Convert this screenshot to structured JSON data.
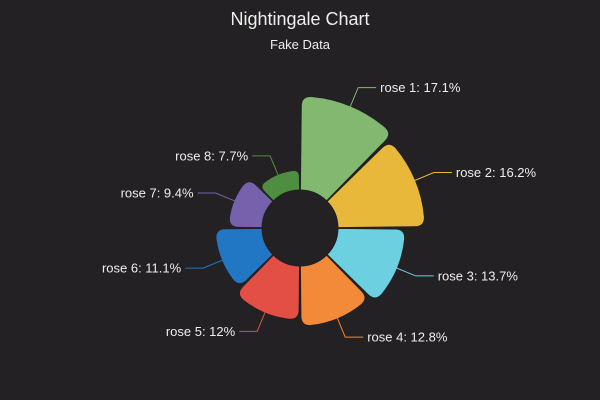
{
  "background": "#232123",
  "chart_data": {
    "type": "pie",
    "variant": "nightingale-rose",
    "title": "Nightingale Chart",
    "subtitle": "Fake Data",
    "series": [
      {
        "name": "rose 1",
        "value": 17.1,
        "label": "rose 1: 17.1%",
        "color": "#82b86f"
      },
      {
        "name": "rose 2",
        "value": 16.2,
        "label": "rose 2: 16.2%",
        "color": "#e8b83a"
      },
      {
        "name": "rose 3",
        "value": 13.7,
        "label": "rose 3: 13.7%",
        "color": "#6dd0e0"
      },
      {
        "name": "rose 4",
        "value": 12.8,
        "label": "rose 4: 12.8%",
        "color": "#f28a3a"
      },
      {
        "name": "rose 5",
        "value": 12,
        "label": "rose 5: 12%",
        "color": "#e34f44"
      },
      {
        "name": "rose 6",
        "value": 11.1,
        "label": "rose 6: 11.1%",
        "color": "#2277c5"
      },
      {
        "name": "rose 7",
        "value": 9.4,
        "label": "rose 7: 9.4%",
        "color": "#7661ad"
      },
      {
        "name": "rose 8",
        "value": 7.7,
        "label": "rose 8: 7.7%",
        "color": "#4f8e41"
      }
    ]
  }
}
